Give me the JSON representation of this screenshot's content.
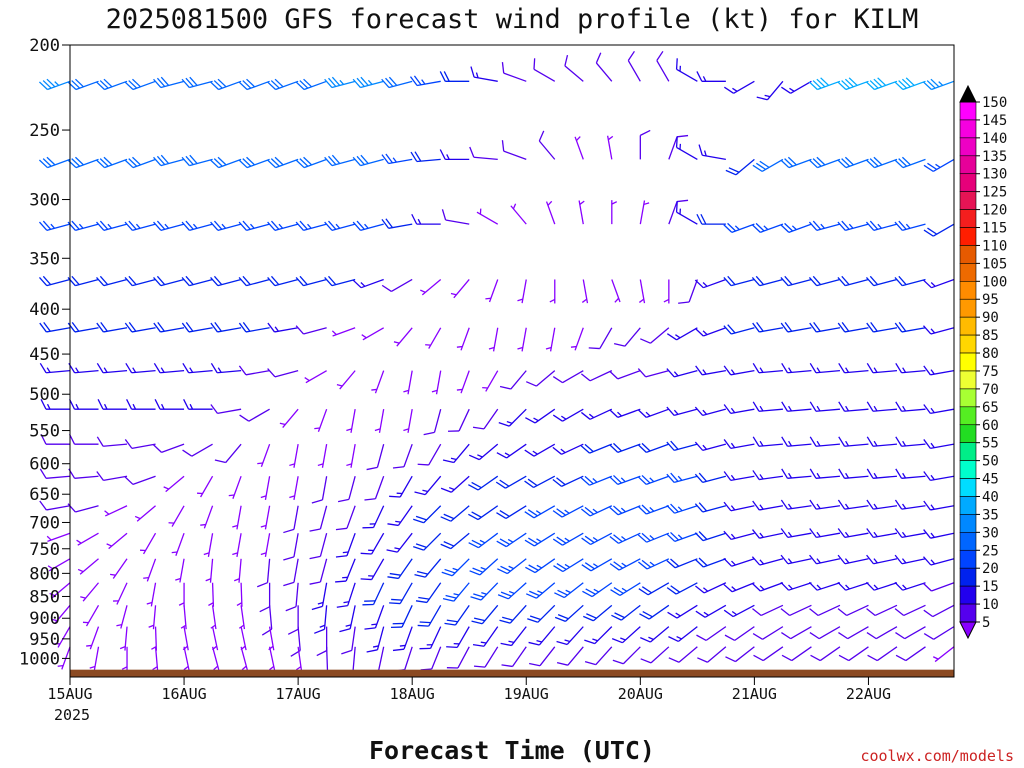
{
  "chart_data": {
    "type": "wind-barb time-height",
    "title": "2025081500 GFS forecast wind profile (kt) for KILM",
    "xlabel": "Forecast Time (UTC)",
    "credit": "coolwx.com/models",
    "x_ticks": [
      "15AUG",
      "16AUG",
      "17AUG",
      "18AUG",
      "19AUG",
      "20AUG",
      "21AUG",
      "22AUG"
    ],
    "x_year": "2025",
    "y_axis": {
      "scale": "log-pressure",
      "range_hPa": [
        1050,
        200
      ],
      "ticks": [
        200,
        250,
        300,
        350,
        400,
        450,
        500,
        550,
        600,
        650,
        700,
        750,
        800,
        850,
        900,
        950,
        1000
      ]
    },
    "time_range_hours": [
      0,
      186
    ],
    "time_step_hours": 6,
    "pressure_levels_hPa": [
      220,
      270,
      320,
      370,
      420,
      470,
      520,
      570,
      620,
      670,
      720,
      770,
      820,
      870,
      920,
      970
    ],
    "colorbar": {
      "ticks": [
        150,
        145,
        140,
        135,
        130,
        125,
        120,
        115,
        110,
        105,
        100,
        95,
        90,
        85,
        80,
        75,
        70,
        65,
        60,
        55,
        50,
        45,
        40,
        35,
        30,
        25,
        20,
        15,
        10,
        5
      ],
      "colors": [
        "#ff00ff",
        "#f600e0",
        "#ee00c4",
        "#e60099",
        "#e6007a",
        "#e61455",
        "#f41e1e",
        "#ff1e00",
        "#e65a00",
        "#ee6a00",
        "#ff8c00",
        "#ff9900",
        "#ffbb00",
        "#ffd700",
        "#ffff00",
        "#eeff33",
        "#a8ff33",
        "#55ee22",
        "#22dd22",
        "#00ee88",
        "#00ffcc",
        "#00ddff",
        "#00aaff",
        "#0088ff",
        "#0066ff",
        "#0044ff",
        "#0022ee",
        "#2200ee",
        "#5500ee",
        "#8800ff"
      ]
    },
    "wind_direction_deg": [
      [
        250,
        250,
        250,
        250,
        255,
        255,
        250,
        250,
        250,
        250,
        255,
        255,
        255,
        260,
        270,
        280,
        290,
        300,
        310,
        320,
        330,
        330,
        300,
        270,
        240,
        220,
        240,
        250,
        250,
        250,
        250,
        250
      ],
      [
        250,
        250,
        250,
        250,
        255,
        255,
        250,
        250,
        250,
        250,
        255,
        255,
        260,
        265,
        270,
        275,
        290,
        320,
        340,
        350,
        0,
        20,
        300,
        280,
        230,
        240,
        250,
        250,
        250,
        250,
        250,
        240
      ],
      [
        255,
        255,
        255,
        255,
        255,
        255,
        255,
        255,
        255,
        255,
        255,
        255,
        260,
        270,
        280,
        300,
        320,
        340,
        350,
        0,
        10,
        20,
        300,
        270,
        250,
        250,
        250,
        255,
        255,
        255,
        255,
        240
      ],
      [
        255,
        255,
        255,
        255,
        255,
        255,
        255,
        255,
        255,
        255,
        255,
        250,
        240,
        230,
        220,
        200,
        190,
        180,
        170,
        160,
        170,
        180,
        200,
        250,
        255,
        255,
        255,
        255,
        255,
        255,
        255,
        250
      ],
      [
        260,
        260,
        260,
        260,
        260,
        260,
        260,
        260,
        260,
        255,
        250,
        240,
        220,
        210,
        200,
        190,
        190,
        190,
        200,
        210,
        220,
        230,
        240,
        250,
        255,
        260,
        260,
        260,
        260,
        260,
        260,
        255
      ],
      [
        265,
        265,
        265,
        265,
        265,
        265,
        265,
        260,
        255,
        240,
        220,
        200,
        190,
        190,
        200,
        210,
        220,
        230,
        240,
        245,
        250,
        255,
        255,
        260,
        260,
        265,
        265,
        265,
        265,
        265,
        265,
        260
      ],
      [
        270,
        270,
        270,
        270,
        270,
        270,
        260,
        240,
        220,
        200,
        190,
        190,
        190,
        195,
        205,
        215,
        225,
        235,
        240,
        245,
        250,
        250,
        255,
        255,
        260,
        265,
        265,
        265,
        265,
        265,
        265,
        260
      ],
      [
        270,
        270,
        265,
        260,
        250,
        240,
        220,
        200,
        190,
        190,
        190,
        195,
        200,
        210,
        220,
        230,
        235,
        240,
        245,
        248,
        250,
        250,
        255,
        255,
        260,
        265,
        265,
        265,
        265,
        265,
        265,
        260
      ],
      [
        265,
        265,
        260,
        250,
        230,
        210,
        200,
        190,
        190,
        190,
        195,
        200,
        210,
        220,
        228,
        235,
        240,
        242,
        245,
        248,
        250,
        250,
        255,
        255,
        260,
        262,
        265,
        265,
        265,
        265,
        265,
        260
      ],
      [
        260,
        255,
        245,
        230,
        210,
        200,
        190,
        190,
        190,
        195,
        200,
        205,
        215,
        225,
        230,
        235,
        238,
        240,
        242,
        245,
        248,
        250,
        252,
        255,
        258,
        260,
        262,
        262,
        262,
        262,
        262,
        260
      ],
      [
        250,
        240,
        230,
        210,
        200,
        190,
        190,
        190,
        190,
        195,
        200,
        210,
        218,
        225,
        230,
        233,
        236,
        238,
        240,
        242,
        245,
        248,
        250,
        252,
        255,
        258,
        260,
        260,
        260,
        260,
        260,
        258
      ],
      [
        240,
        230,
        215,
        200,
        190,
        185,
        185,
        185,
        190,
        195,
        202,
        210,
        215,
        220,
        225,
        228,
        232,
        235,
        238,
        240,
        242,
        245,
        248,
        250,
        252,
        255,
        258,
        258,
        258,
        258,
        258,
        255
      ],
      [
        230,
        220,
        205,
        190,
        180,
        178,
        178,
        180,
        185,
        190,
        198,
        205,
        210,
        215,
        220,
        224,
        228,
        230,
        232,
        235,
        238,
        240,
        242,
        245,
        248,
        250,
        252,
        252,
        252,
        252,
        252,
        250
      ],
      [
        220,
        210,
        195,
        185,
        175,
        172,
        172,
        175,
        180,
        185,
        192,
        200,
        205,
        210,
        215,
        220,
        222,
        225,
        228,
        230,
        232,
        235,
        238,
        240,
        242,
        245,
        245,
        245,
        245,
        245,
        245,
        242
      ],
      [
        210,
        200,
        185,
        178,
        170,
        168,
        168,
        170,
        175,
        180,
        188,
        195,
        200,
        205,
        210,
        215,
        218,
        220,
        222,
        225,
        228,
        230,
        232,
        235,
        235,
        238,
        240,
        240,
        240,
        240,
        240,
        238
      ],
      [
        200,
        190,
        180,
        175,
        168,
        165,
        165,
        168,
        172,
        178,
        185,
        192,
        198,
        202,
        208,
        212,
        215,
        218,
        220,
        222,
        225,
        228,
        230,
        230,
        232,
        235,
        235,
        235,
        235,
        235,
        235,
        232
      ]
    ],
    "wind_speed_kt": [
      [
        35,
        30,
        30,
        30,
        30,
        30,
        30,
        30,
        30,
        30,
        35,
        35,
        30,
        25,
        20,
        15,
        10,
        10,
        10,
        10,
        10,
        10,
        15,
        15,
        15,
        15,
        15,
        40,
        40,
        40,
        40,
        35
      ],
      [
        30,
        30,
        30,
        30,
        30,
        30,
        30,
        30,
        30,
        30,
        30,
        30,
        25,
        20,
        15,
        10,
        10,
        10,
        5,
        5,
        10,
        10,
        15,
        15,
        20,
        30,
        30,
        30,
        30,
        30,
        30,
        25
      ],
      [
        25,
        25,
        25,
        25,
        25,
        25,
        25,
        25,
        25,
        25,
        25,
        25,
        20,
        15,
        10,
        5,
        5,
        5,
        5,
        5,
        5,
        10,
        15,
        20,
        25,
        25,
        25,
        25,
        25,
        25,
        25,
        20
      ],
      [
        20,
        20,
        20,
        20,
        20,
        20,
        20,
        20,
        20,
        20,
        20,
        15,
        10,
        5,
        5,
        5,
        5,
        5,
        5,
        5,
        5,
        5,
        10,
        15,
        20,
        20,
        20,
        20,
        20,
        20,
        20,
        15
      ],
      [
        20,
        20,
        20,
        20,
        20,
        20,
        20,
        20,
        15,
        10,
        5,
        5,
        5,
        5,
        5,
        5,
        5,
        5,
        5,
        10,
        10,
        10,
        15,
        15,
        20,
        20,
        20,
        20,
        20,
        20,
        20,
        15
      ],
      [
        15,
        15,
        15,
        15,
        15,
        15,
        15,
        10,
        10,
        5,
        5,
        5,
        5,
        5,
        5,
        5,
        10,
        10,
        10,
        10,
        10,
        10,
        15,
        15,
        15,
        15,
        15,
        15,
        15,
        15,
        15,
        15
      ],
      [
        15,
        15,
        15,
        15,
        15,
        15,
        10,
        10,
        5,
        5,
        5,
        5,
        5,
        10,
        10,
        10,
        15,
        15,
        15,
        15,
        15,
        15,
        15,
        15,
        15,
        15,
        15,
        15,
        15,
        15,
        15,
        15
      ],
      [
        10,
        10,
        10,
        10,
        10,
        10,
        10,
        5,
        5,
        5,
        5,
        10,
        10,
        10,
        15,
        15,
        15,
        15,
        15,
        20,
        20,
        20,
        20,
        15,
        15,
        15,
        15,
        15,
        15,
        15,
        15,
        15
      ],
      [
        10,
        10,
        10,
        10,
        5,
        5,
        5,
        5,
        5,
        10,
        10,
        10,
        15,
        15,
        15,
        20,
        20,
        20,
        20,
        25,
        25,
        25,
        25,
        20,
        15,
        15,
        15,
        15,
        15,
        15,
        15,
        15
      ],
      [
        10,
        10,
        5,
        5,
        5,
        5,
        5,
        5,
        10,
        10,
        10,
        15,
        15,
        20,
        20,
        20,
        20,
        25,
        25,
        25,
        25,
        25,
        25,
        20,
        15,
        15,
        15,
        15,
        15,
        15,
        15,
        15
      ],
      [
        5,
        5,
        5,
        5,
        5,
        5,
        5,
        5,
        10,
        10,
        15,
        15,
        15,
        20,
        20,
        25,
        25,
        25,
        25,
        25,
        25,
        25,
        25,
        20,
        15,
        15,
        15,
        15,
        15,
        15,
        15,
        15
      ],
      [
        5,
        5,
        5,
        5,
        5,
        5,
        5,
        10,
        10,
        10,
        15,
        15,
        20,
        20,
        25,
        25,
        25,
        25,
        25,
        25,
        25,
        25,
        20,
        20,
        15,
        15,
        15,
        15,
        15,
        15,
        15,
        15
      ],
      [
        5,
        5,
        5,
        5,
        5,
        5,
        5,
        10,
        10,
        15,
        15,
        20,
        20,
        20,
        25,
        25,
        25,
        25,
        25,
        25,
        25,
        20,
        20,
        15,
        15,
        15,
        15,
        15,
        15,
        15,
        15,
        10
      ],
      [
        5,
        5,
        5,
        5,
        5,
        5,
        5,
        10,
        10,
        15,
        15,
        15,
        20,
        20,
        20,
        20,
        20,
        20,
        20,
        20,
        20,
        20,
        15,
        15,
        15,
        10,
        10,
        10,
        10,
        10,
        10,
        10
      ],
      [
        5,
        5,
        5,
        5,
        5,
        5,
        5,
        5,
        10,
        10,
        10,
        15,
        15,
        15,
        15,
        15,
        15,
        15,
        15,
        15,
        15,
        15,
        15,
        10,
        10,
        10,
        10,
        10,
        10,
        10,
        10,
        10
      ],
      [
        5,
        5,
        5,
        5,
        5,
        5,
        5,
        5,
        5,
        10,
        10,
        10,
        10,
        10,
        10,
        10,
        10,
        10,
        10,
        10,
        10,
        10,
        10,
        10,
        10,
        10,
        10,
        10,
        10,
        10,
        10,
        5
      ]
    ]
  }
}
